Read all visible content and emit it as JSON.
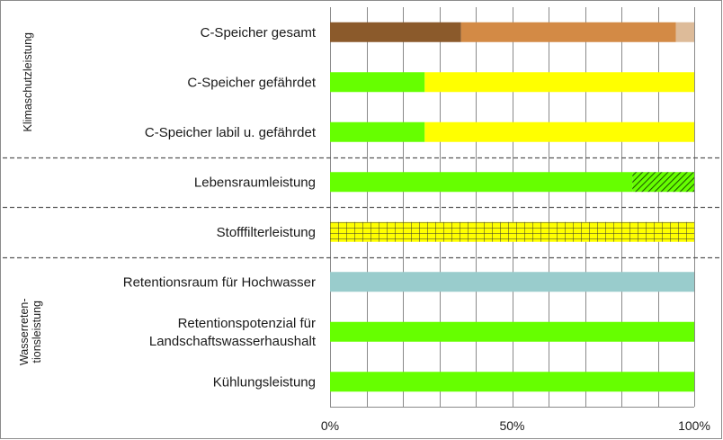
{
  "chart_data": {
    "type": "bar",
    "orientation": "horizontal",
    "stacked": true,
    "xlim": [
      0,
      100
    ],
    "x_ticks": [
      "0%",
      "50%",
      "100%"
    ],
    "grid": true,
    "legend": "none",
    "groups": [
      {
        "label_lines": [
          "Klimaschutzleistung"
        ],
        "rows": [
          0,
          1,
          2
        ]
      },
      {
        "label_lines": [],
        "rows": [
          3
        ]
      },
      {
        "label_lines": [],
        "rows": [
          4
        ]
      },
      {
        "label_lines": [
          "Wasserreten-",
          "tionsleistung"
        ],
        "rows": [
          5,
          6,
          7
        ]
      }
    ],
    "categories": [
      {
        "label_lines": [
          "C-Speicher gesamt"
        ],
        "segments": [
          {
            "value": 36,
            "color": "#8B5A2B",
            "pattern": "solid"
          },
          {
            "value": 59,
            "color": "#D38A45",
            "pattern": "solid"
          },
          {
            "value": 5,
            "color": "#DDBB99",
            "pattern": "solid"
          }
        ]
      },
      {
        "label_lines": [
          "C-Speicher gefährdet"
        ],
        "segments": [
          {
            "value": 26,
            "color": "#66FF00",
            "pattern": "solid"
          },
          {
            "value": 74,
            "color": "#FFFF00",
            "pattern": "solid"
          }
        ]
      },
      {
        "label_lines": [
          "C-Speicher labil u. gefährdet"
        ],
        "segments": [
          {
            "value": 26,
            "color": "#66FF00",
            "pattern": "solid"
          },
          {
            "value": 74,
            "color": "#FFFF00",
            "pattern": "solid"
          }
        ]
      },
      {
        "label_lines": [
          "Lebensraumleistung"
        ],
        "segments": [
          {
            "value": 83,
            "color": "#66FF00",
            "pattern": "solid"
          },
          {
            "value": 17,
            "color": "#66FF00",
            "pattern": "diagonal-hatch"
          }
        ]
      },
      {
        "label_lines": [
          "Stofffilterleistung"
        ],
        "segments": [
          {
            "value": 100,
            "color": "#FFFF00",
            "pattern": "grid-hatch"
          }
        ]
      },
      {
        "label_lines": [
          "Retentionsraum für Hochwasser"
        ],
        "segments": [
          {
            "value": 100,
            "color": "#99CCCC",
            "pattern": "solid"
          }
        ]
      },
      {
        "label_lines": [
          "Retentionspotenzial für",
          "Landschaftswasserhaushalt"
        ],
        "segments": [
          {
            "value": 100,
            "color": "#66FF00",
            "pattern": "solid"
          }
        ]
      },
      {
        "label_lines": [
          "Kühlungsleistung"
        ],
        "segments": [
          {
            "value": 100,
            "color": "#66FF00",
            "pattern": "solid"
          }
        ]
      }
    ]
  }
}
